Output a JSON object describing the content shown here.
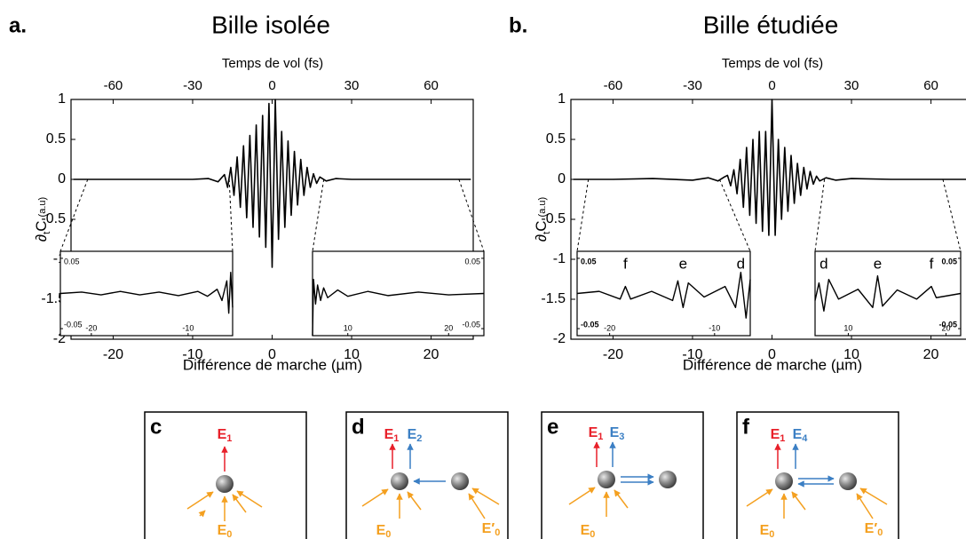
{
  "chart_data": [
    {
      "type": "line",
      "panel_label": "a.",
      "title": "Bille isolée",
      "x2label": "Temps de vol (fs)",
      "xlabel": "Différence de marche (µm)",
      "ylabel": [
        "∂",
        "t",
        "C",
        "(a.u)"
      ],
      "xlim": [
        -25.3,
        25.3
      ],
      "x2lim": [
        -75.9,
        75.9
      ],
      "ylim": [
        -2,
        1
      ],
      "xticks": [
        -20,
        -10,
        0,
        10,
        20
      ],
      "x2ticks": [
        -60,
        -30,
        0,
        30,
        60
      ],
      "yticks": [
        1,
        0.5,
        0,
        -0.5,
        -1,
        -1.5,
        -2
      ],
      "series": [
        {
          "color": "#000000",
          "x": [
            -25,
            -20,
            -15,
            -10,
            -8,
            -6.8,
            -6,
            -5.6,
            -5.2,
            -4.8,
            -4.4,
            -4,
            -3.6,
            -3.2,
            -2.8,
            -2.4,
            -2,
            -1.6,
            -1.2,
            -0.8,
            -0.4,
            0,
            0.4,
            0.8,
            1.2,
            1.6,
            2,
            2.4,
            2.8,
            3.2,
            3.6,
            4,
            4.4,
            4.8,
            5.2,
            5.6,
            6,
            6.8,
            8,
            10,
            15,
            20,
            25
          ],
          "values": [
            0,
            0,
            0,
            0,
            0.01,
            -0.03,
            0.06,
            -0.1,
            0.15,
            -0.2,
            0.28,
            -0.35,
            0.42,
            -0.48,
            0.55,
            -0.6,
            0.68,
            -0.72,
            0.8,
            -0.85,
            0.95,
            -1.1,
            1.0,
            -0.75,
            0.6,
            -0.6,
            0.48,
            -0.45,
            0.35,
            -0.32,
            0.25,
            -0.2,
            0.15,
            -0.1,
            0.07,
            -0.05,
            0.03,
            -0.02,
            0.01,
            0,
            0,
            0,
            0
          ]
        }
      ],
      "insets": [
        {
          "xlim": [
            -23.2,
            -5.4
          ],
          "ylim": [
            -0.06,
            0.06
          ],
          "xticks": [
            -20,
            -10
          ],
          "yticks": [
            0.05,
            -0.05
          ],
          "x": [
            -23.2,
            -21,
            -19,
            -17,
            -15,
            -13,
            -11,
            -9,
            -8,
            -7,
            -6.5,
            -6,
            -5.8,
            -5.6,
            -5.4
          ],
          "values": [
            0,
            0.002,
            -0.002,
            0.003,
            -0.002,
            0.002,
            -0.003,
            0.003,
            -0.004,
            0.006,
            -0.01,
            0.018,
            -0.028,
            0.03,
            -0.02
          ],
          "annotations": []
        },
        {
          "xlim": [
            6.5,
            23.5
          ],
          "ylim": [
            -0.06,
            0.06
          ],
          "xticks": [
            10,
            20
          ],
          "yticks": [
            0.05,
            -0.05
          ],
          "x": [
            6.5,
            6.6,
            6.8,
            7,
            7.3,
            7.6,
            8,
            9,
            10,
            12,
            14,
            17,
            20,
            23.5
          ],
          "values": [
            -0.06,
            0.02,
            -0.015,
            0.012,
            -0.01,
            0.008,
            -0.006,
            0.005,
            -0.004,
            0.003,
            -0.003,
            0.002,
            -0.002,
            0
          ],
          "annotations": []
        }
      ]
    },
    {
      "type": "line",
      "panel_label": "b.",
      "title": "Bille étudiée",
      "x2label": "Temps de vol (fs)",
      "xlabel": "Différence de marche (µm)",
      "ylabel": [
        "∂",
        "t",
        "C",
        "(a.u)"
      ],
      "xlim": [
        -25.3,
        25.3
      ],
      "x2lim": [
        -75.9,
        75.9
      ],
      "ylim": [
        -2,
        1
      ],
      "xticks": [
        -20,
        -10,
        0,
        10,
        20
      ],
      "x2ticks": [
        -60,
        -30,
        0,
        30,
        60
      ],
      "yticks": [
        1,
        0.5,
        0,
        -0.5,
        -1,
        -1.5,
        -2
      ],
      "series": [
        {
          "color": "#000000",
          "x": [
            -25,
            -20,
            -15,
            -10,
            -8,
            -6.8,
            -6,
            -5.6,
            -5.2,
            -4.8,
            -4.4,
            -4,
            -3.6,
            -3.2,
            -2.8,
            -2.4,
            -2,
            -1.6,
            -1.2,
            -0.8,
            -0.4,
            0,
            0.4,
            0.8,
            1.2,
            1.6,
            2,
            2.4,
            2.8,
            3.2,
            3.6,
            4,
            4.4,
            4.8,
            5.2,
            5.6,
            6,
            6.8,
            8,
            10,
            15,
            20,
            25
          ],
          "values": [
            0,
            0,
            0.01,
            -0.01,
            0.02,
            -0.02,
            0.03,
            0.05,
            -0.08,
            0.12,
            -0.18,
            0.25,
            -0.35,
            0.4,
            -0.45,
            0.5,
            -0.55,
            0.6,
            -0.65,
            0.6,
            -0.7,
            1.0,
            -0.7,
            0.5,
            -0.5,
            0.4,
            -0.4,
            0.3,
            -0.3,
            0.2,
            -0.2,
            0.15,
            -0.12,
            0.1,
            -0.06,
            0.04,
            -0.02,
            0.02,
            -0.01,
            0.01,
            0,
            0,
            0
          ]
        }
      ],
      "insets": [
        {
          "xlim": [
            -23.1,
            -6.6
          ],
          "ylim": [
            -0.06,
            0.06
          ],
          "xticks": [
            -20,
            -10
          ],
          "yticks": [
            0.05,
            -0.05
          ],
          "x": [
            -23.1,
            -21,
            -19,
            -18.5,
            -18,
            -16,
            -14,
            -13.5,
            -13,
            -12.5,
            -11,
            -9,
            -8,
            -7.5,
            -7,
            -6.6
          ],
          "values": [
            0,
            0.003,
            -0.008,
            0.01,
            -0.008,
            0.003,
            -0.01,
            0.018,
            -0.02,
            0.015,
            -0.005,
            0.01,
            -0.02,
            0.03,
            -0.035,
            0.02
          ],
          "annotations": [
            {
              "text": "f",
              "x": -18.5
            },
            {
              "text": "e",
              "x": -13
            },
            {
              "text": "d",
              "x": -7.5
            }
          ]
        },
        {
          "xlim": [
            6.6,
            21.5
          ],
          "ylim": [
            -0.06,
            0.06
          ],
          "xticks": [
            10,
            20
          ],
          "yticks": [
            0.05,
            -0.05
          ],
          "x": [
            6.6,
            7,
            7.5,
            8,
            9,
            11,
            12.5,
            13,
            13.5,
            15,
            17,
            18.5,
            19,
            21.5
          ],
          "values": [
            -0.01,
            0.015,
            -0.025,
            0.02,
            -0.008,
            0.006,
            -0.02,
            0.025,
            -0.018,
            0.005,
            -0.008,
            0.01,
            -0.006,
            0
          ],
          "annotations": [
            {
              "text": "d",
              "x": 7.5
            },
            {
              "text": "e",
              "x": 13
            },
            {
              "text": "f",
              "x": 18.5
            }
          ]
        }
      ]
    }
  ],
  "diagrams": [
    {
      "letter": "c",
      "labels": [
        {
          "main": "E",
          "sub": "1",
          "color": "#e8202a"
        },
        {
          "main": "E",
          "sub": "0",
          "color": "#f4a020"
        }
      ]
    },
    {
      "letter": "d",
      "labels": [
        {
          "main": "E",
          "sub": "1",
          "color": "#e8202a"
        },
        {
          "main": "E",
          "sub": "2",
          "color": "#3b7fc4"
        },
        {
          "main": "E",
          "sub": "0",
          "color": "#f4a020"
        },
        {
          "main": "E′",
          "sub": "0",
          "color": "#f4a020"
        }
      ]
    },
    {
      "letter": "e",
      "labels": [
        {
          "main": "E",
          "sub": "1",
          "color": "#e8202a"
        },
        {
          "main": "E",
          "sub": "3",
          "color": "#3b7fc4"
        },
        {
          "main": "E",
          "sub": "0",
          "color": "#f4a020"
        }
      ]
    },
    {
      "letter": "f",
      "labels": [
        {
          "main": "E",
          "sub": "1",
          "color": "#e8202a"
        },
        {
          "main": "E",
          "sub": "4",
          "color": "#3b7fc4"
        },
        {
          "main": "E",
          "sub": "0",
          "color": "#f4a020"
        },
        {
          "main": "E′",
          "sub": "0",
          "color": "#f4a020"
        }
      ]
    }
  ]
}
